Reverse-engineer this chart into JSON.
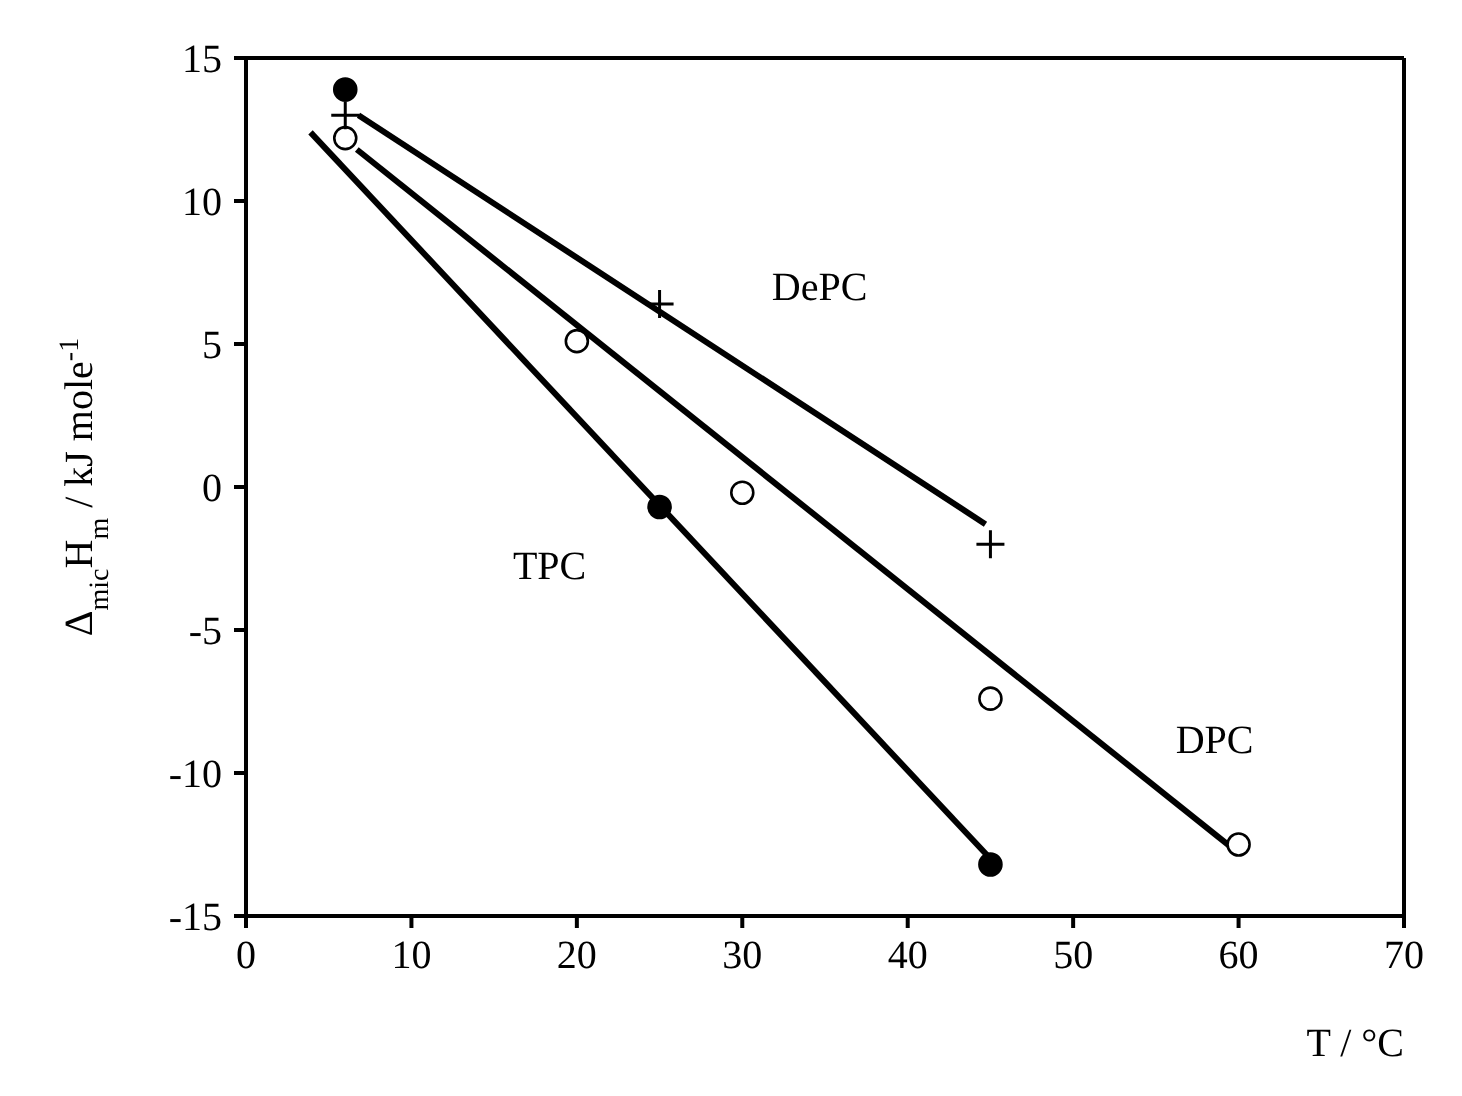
{
  "chart_data": {
    "type": "scatter",
    "xlabel": "T / °C",
    "ylabel": "Δ$_{mic}$H$_{m}$ / kJ mole$^{-1}$",
    "xlim": [
      0,
      70
    ],
    "xticks": [
      0,
      10,
      20,
      30,
      40,
      50,
      60,
      70
    ],
    "ylim": [
      -15,
      15
    ],
    "yticks": [
      -15,
      -10,
      -5,
      0,
      5,
      10,
      15
    ],
    "series": [
      {
        "name": "TPC",
        "marker": "circle",
        "color": "#000000",
        "x": [
          6,
          25,
          45
        ],
        "values": [
          13.9,
          -0.7,
          -13.2
        ]
      },
      {
        "name": "DPC",
        "marker": "circle",
        "color": "#000000",
        "x": [
          6,
          20,
          30,
          45,
          60
        ],
        "values": [
          12.2,
          5.1,
          -0.2,
          -7.4,
          -12.5
        ]
      },
      {
        "name": "DePC",
        "marker": "cross",
        "color": "#000000",
        "x": [
          6,
          25,
          45
        ],
        "values": [
          13.0,
          6.4,
          -2.0
        ]
      },
      {
        "type": "line",
        "marker": "none",
        "color": "#000000",
        "x": [
          3.9,
          45
        ],
        "values": [
          12.4,
          -13.0
        ]
      },
      {
        "type": "line",
        "marker": "none",
        "color": "#000000",
        "x": [
          6.7,
          60
        ],
        "values": [
          11.8,
          -12.8
        ]
      },
      {
        "type": "line",
        "marker": "none",
        "color": "#000000",
        "x": [
          6.8,
          44.7
        ],
        "values": [
          13.0,
          -1.3
        ]
      }
    ]
  }
}
